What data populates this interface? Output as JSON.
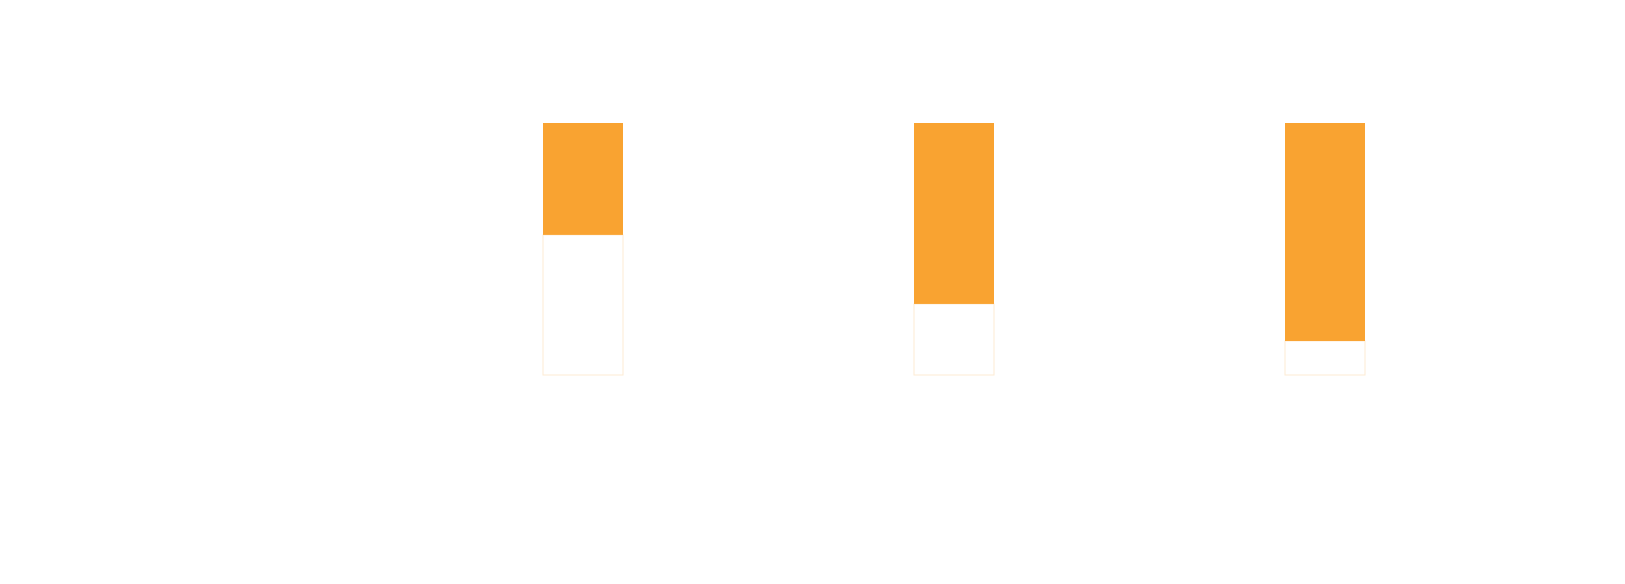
{
  "chart_data": {
    "type": "stacked-bar",
    "categories": [
      null,
      null,
      null
    ],
    "series": [
      {
        "color": "#ffffff",
        "values": [
          55.6,
          28.2,
          13.5
        ]
      },
      {
        "color": "#f9a331",
        "values": [
          44.4,
          71.8,
          86.5
        ]
      }
    ],
    "ylim": [
      0,
      100
    ]
  }
}
